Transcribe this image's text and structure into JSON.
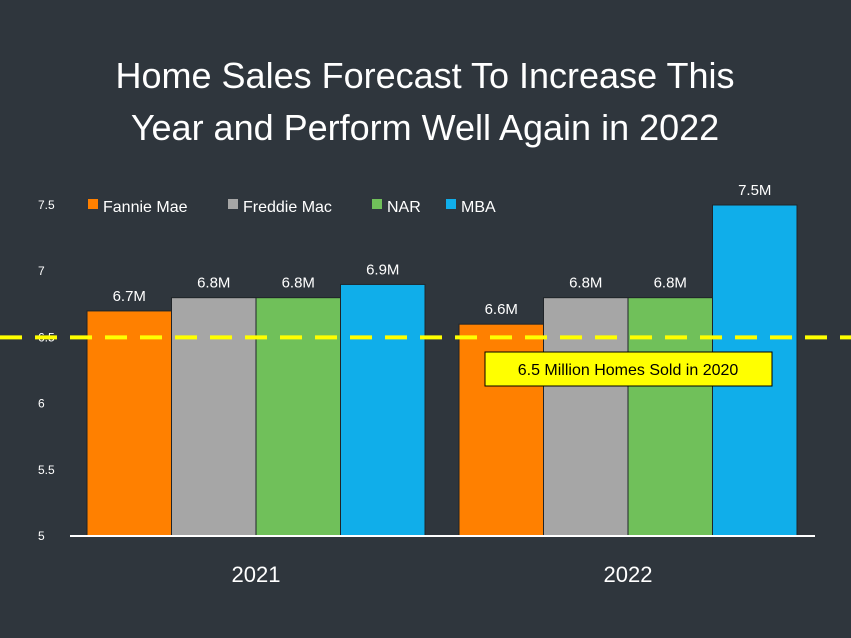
{
  "chart_data": {
    "type": "bar",
    "title_lines": [
      "Home Sales Forecast To Increase This",
      "Year and Perform Well Again in 2022"
    ],
    "categories": [
      "2021",
      "2022"
    ],
    "series": [
      {
        "name": "Fannie Mae",
        "color": "#ff8000",
        "values": [
          6.7,
          6.6
        ],
        "labels": [
          "6.7M",
          "6.6M"
        ]
      },
      {
        "name": "Freddie Mac",
        "color": "#a6a6a6",
        "values": [
          6.8,
          6.8
        ],
        "labels": [
          "6.8M",
          "6.8M"
        ]
      },
      {
        "name": "NAR",
        "color": "#70c05a",
        "values": [
          6.8,
          6.8
        ],
        "labels": [
          "6.8M",
          "6.8M"
        ]
      },
      {
        "name": "MBA",
        "color": "#10aeea",
        "values": [
          6.9,
          7.5
        ],
        "labels": [
          "6.9M",
          "7.5M"
        ]
      }
    ],
    "ylim": [
      5,
      7.5
    ],
    "yticks": [
      {
        "value": 5,
        "label": "5"
      },
      {
        "value": 5.5,
        "label": "5.5"
      },
      {
        "value": 6,
        "label": "6"
      },
      {
        "value": 6.5,
        "label": "6.5"
      },
      {
        "value": 7,
        "label": "7"
      },
      {
        "value": 7.5,
        "label": "7.5"
      }
    ],
    "reference_line": {
      "value": 6.5,
      "label": "6.5 Million Homes Sold in 2020",
      "color": "#ffff00"
    },
    "legend_position": "top-left",
    "grid": false
  }
}
